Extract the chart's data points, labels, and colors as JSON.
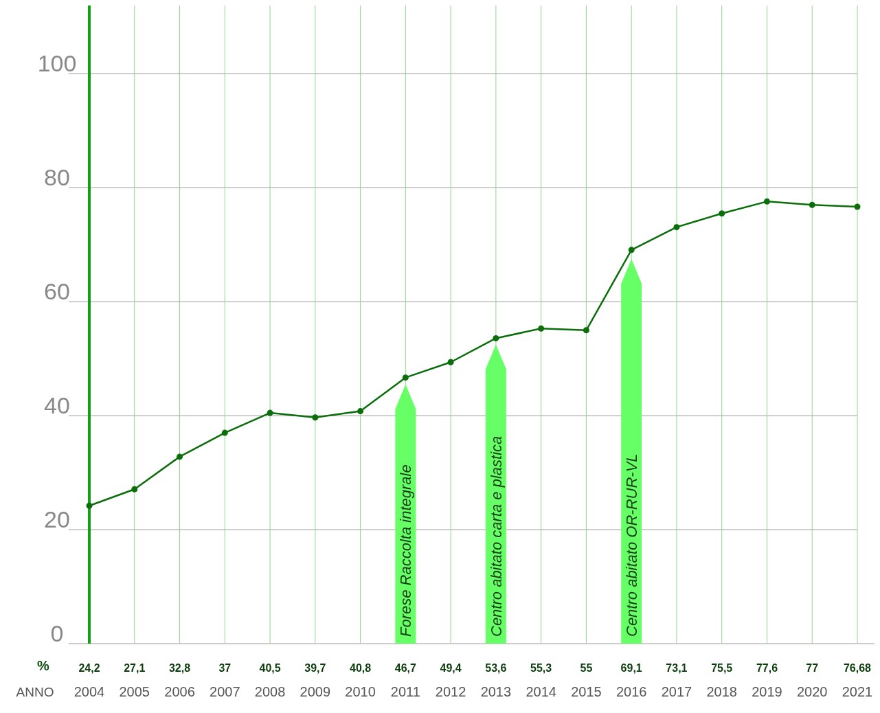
{
  "chart_data": {
    "type": "line",
    "xlabel": "ANNO",
    "ylabel": "%",
    "categories": [
      "2004",
      "2005",
      "2006",
      "2007",
      "2008",
      "2009",
      "2010",
      "2011",
      "2012",
      "2013",
      "2014",
      "2015",
      "2016",
      "2017",
      "2018",
      "2019",
      "2020",
      "2021"
    ],
    "series": [
      {
        "type": "bar",
        "color": "#66ff66",
        "values": [
          null,
          null,
          null,
          null,
          null,
          null,
          null,
          45.5,
          null,
          52.5,
          null,
          null,
          67.5,
          null,
          null,
          null,
          null,
          null
        ]
      },
      {
        "color": "#0b6e0b",
        "values": [
          24.2,
          27.1,
          32.8,
          37,
          40.5,
          39.7,
          40.8,
          46.7,
          49.4,
          53.6,
          55.3,
          55,
          69.1,
          73.1,
          75.5,
          77.6,
          77,
          76.68
        ],
        "value_labels": [
          "24,2",
          "27,1",
          "32,8",
          "37",
          "40,5",
          "39,7",
          "40,8",
          "46,7",
          "49,4",
          "53,6",
          "55,3",
          "55",
          "69,1",
          "73,1",
          "75,5",
          "77,6",
          "77",
          "76,68"
        ]
      }
    ],
    "ylim": [
      0,
      112
    ],
    "yticks": [
      0,
      20,
      40,
      60,
      80,
      100
    ],
    "grid": true,
    "marker": "circle",
    "line_style": "solid",
    "annotations": [
      "Forese Raccolta integrale",
      "Centro abitato carta e plastica",
      "Centro abitato OR-RUR-VL"
    ]
  }
}
